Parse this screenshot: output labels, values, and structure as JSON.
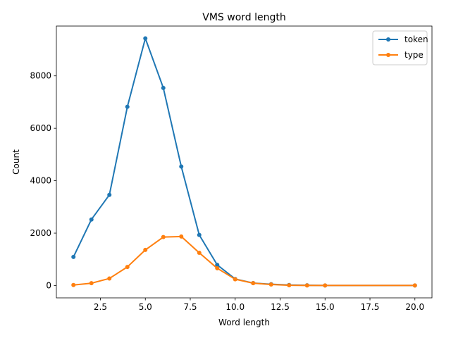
{
  "chart_data": {
    "type": "line",
    "title": "VMS word length",
    "xlabel": "Word length",
    "ylabel": "Count",
    "xlim": [
      0.05,
      20.95
    ],
    "ylim": [
      -470,
      9900
    ],
    "xticks": [
      2.5,
      5.0,
      7.5,
      10.0,
      12.5,
      15.0,
      17.5,
      20.0
    ],
    "xtick_labels": [
      "2.5",
      "5.0",
      "7.5",
      "10.0",
      "12.5",
      "15.0",
      "17.5",
      "20.0"
    ],
    "yticks": [
      0,
      2000,
      4000,
      6000,
      8000
    ],
    "ytick_labels": [
      "0",
      "2000",
      "4000",
      "6000",
      "8000"
    ],
    "grid": false,
    "legend_position": "top-right",
    "series": [
      {
        "name": "token",
        "color": "#1f77b4",
        "x": [
          1,
          2,
          3,
          4,
          5,
          6,
          7,
          8,
          9,
          10,
          11,
          12,
          13,
          14,
          15,
          20
        ],
        "y": [
          1090,
          2520,
          3460,
          6820,
          9430,
          7540,
          4540,
          1930,
          790,
          250,
          95,
          50,
          20,
          10,
          5,
          2
        ]
      },
      {
        "name": "type",
        "color": "#ff7f0e",
        "x": [
          1,
          2,
          3,
          4,
          5,
          6,
          7,
          8,
          9,
          10,
          11,
          12,
          13,
          14,
          15,
          20
        ],
        "y": [
          20,
          90,
          270,
          710,
          1360,
          1850,
          1870,
          1250,
          660,
          240,
          90,
          40,
          10,
          5,
          5,
          2
        ]
      }
    ]
  }
}
